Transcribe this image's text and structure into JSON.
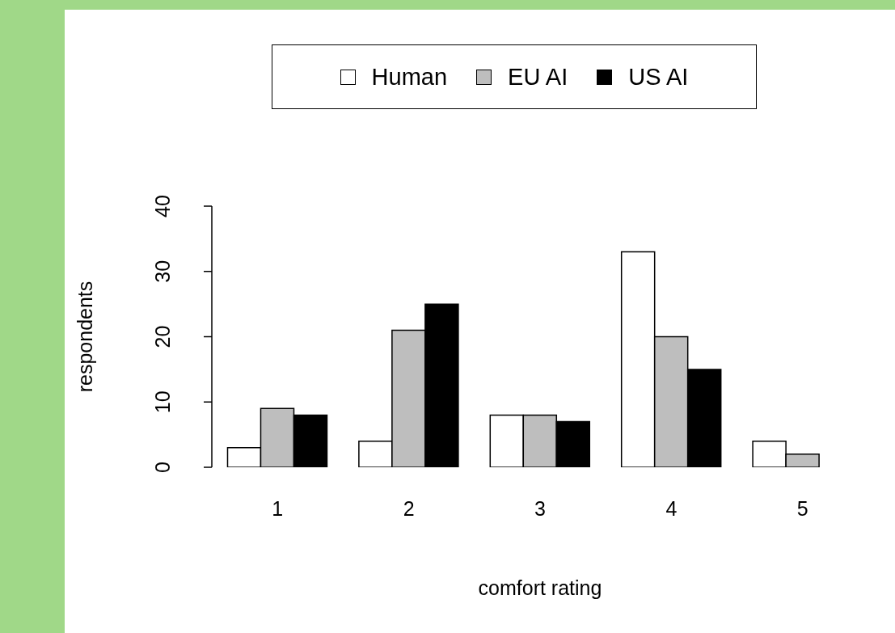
{
  "chart_data": {
    "type": "bar",
    "xlabel": "comfort rating",
    "ylabel": "respondents",
    "categories": [
      "1",
      "2",
      "3",
      "4",
      "5"
    ],
    "series": [
      {
        "name": "Human",
        "color": "#ffffff",
        "values": [
          3,
          4,
          8,
          33,
          4
        ]
      },
      {
        "name": "EU AI",
        "color": "#bebebe",
        "values": [
          9,
          21,
          8,
          20,
          2
        ]
      },
      {
        "name": "US AI",
        "color": "#000000",
        "values": [
          8,
          25,
          7,
          15,
          0
        ]
      }
    ],
    "ylim": [
      0,
      40
    ],
    "yticks": [
      0,
      10,
      20,
      30,
      40
    ],
    "grid": false,
    "legend": "top"
  }
}
